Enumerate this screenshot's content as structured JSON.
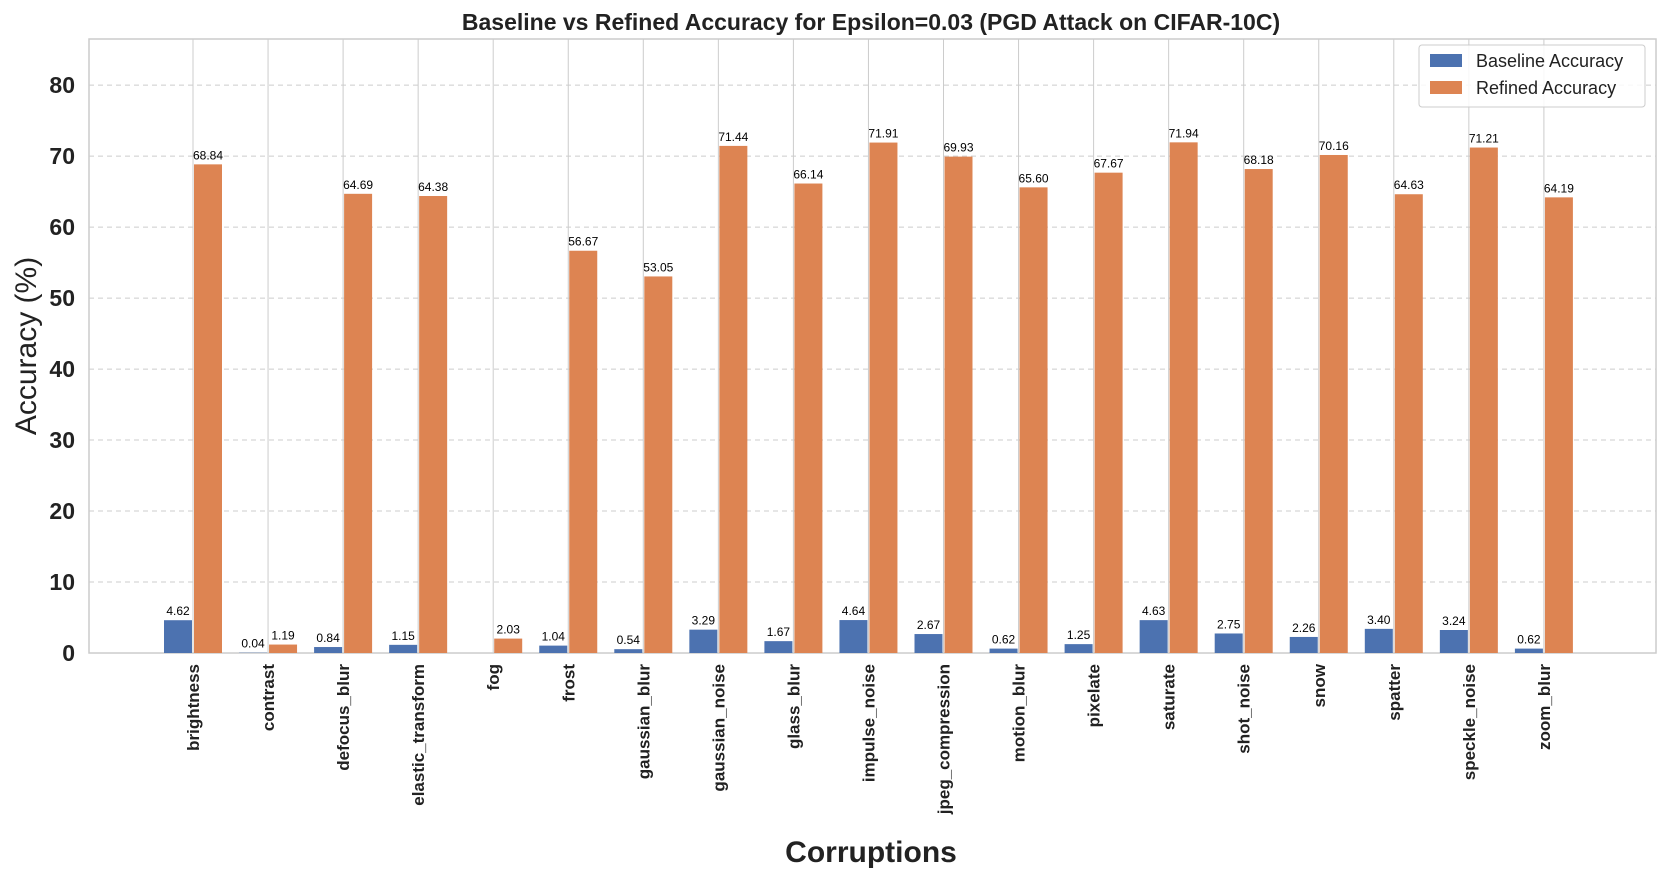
{
  "chart_data": {
    "type": "bar",
    "title": "Baseline vs Refined Accuracy for Epsilon=0.03 (PGD Attack on CIFAR-10C)",
    "xlabel": "Corruptions",
    "ylabel": "Accuracy (%)",
    "ylim": [
      0,
      86.5
    ],
    "yticks": [
      0,
      10,
      20,
      30,
      40,
      50,
      60,
      70,
      80
    ],
    "grid": true,
    "legend_position": "top-right",
    "categories": [
      "brightness",
      "contrast",
      "defocus_blur",
      "elastic_transform",
      "fog",
      "frost",
      "gaussian_blur",
      "gaussian_noise",
      "glass_blur",
      "impulse_noise",
      "jpeg_compression",
      "motion_blur",
      "pixelate",
      "saturate",
      "shot_noise",
      "snow",
      "spatter",
      "speckle_noise",
      "zoom_blur"
    ],
    "series": [
      {
        "name": "Baseline Accuracy",
        "color": "#4c72b0",
        "values": [
          4.62,
          0.04,
          0.84,
          1.15,
          0.0,
          1.04,
          0.54,
          3.29,
          1.67,
          4.64,
          2.67,
          0.62,
          1.25,
          4.63,
          2.75,
          2.26,
          3.4,
          3.24,
          0.62
        ],
        "labels": [
          "4.62",
          "0.04",
          "0.84",
          "1.15",
          "",
          "1.04",
          "0.54",
          "3.29",
          "1.67",
          "4.64",
          "2.67",
          "0.62",
          "1.25",
          "4.63",
          "2.75",
          "2.26",
          "3.40",
          "3.24",
          "0.62"
        ]
      },
      {
        "name": "Refined Accuracy",
        "color": "#dd8452",
        "values": [
          68.84,
          1.19,
          64.69,
          64.38,
          2.03,
          56.67,
          53.05,
          71.44,
          66.14,
          71.91,
          69.93,
          65.6,
          67.67,
          71.94,
          68.18,
          70.16,
          64.63,
          71.21,
          64.19
        ],
        "labels": [
          "68.84",
          "1.19",
          "64.69",
          "64.38",
          "2.03",
          "56.67",
          "53.05",
          "71.44",
          "66.14",
          "71.91",
          "69.93",
          "65.60",
          "67.67",
          "71.94",
          "68.18",
          "70.16",
          "64.63",
          "71.21",
          "64.19"
        ]
      }
    ]
  }
}
